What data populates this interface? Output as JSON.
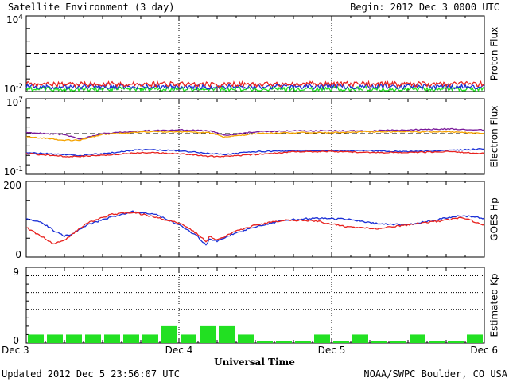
{
  "header": {
    "title": "Satellite Environment (3 day)",
    "begin": "Begin:  2012 Dec 3 0000 UTC"
  },
  "footer": {
    "updated": "Updated 2012 Dec  5 23:56:07 UTC",
    "credit": "NOAA/SWPC Boulder, CO USA"
  },
  "x_axis": {
    "title": "Universal Time",
    "ticks": [
      "Dec 3",
      "Dec 4",
      "Dec 5",
      "Dec 6"
    ]
  },
  "colors": {
    "red": "#e8231f",
    "blue": "#1a2fd6",
    "green": "#22e022",
    "orange": "#f5a300",
    "purple": "#7a1a9a",
    "black": "#000000"
  },
  "chart_data": [
    {
      "type": "line",
      "ylabel": "Proton Flux",
      "scale": "log",
      "ylim_exp": [
        -2,
        4
      ],
      "y_tick_labels": [
        "10^4",
        "10^-2"
      ],
      "threshold_exp": 1,
      "x_days": [
        0,
        0.25,
        0.5,
        0.75,
        1,
        1.25,
        1.5,
        1.75,
        2,
        2.25,
        2.5,
        2.75,
        3
      ],
      "series": [
        {
          "color": "red",
          "values_exp": [
            -1.4,
            -1.45,
            -1.4,
            -1.42,
            -1.4,
            -1.45,
            -1.42,
            -1.4,
            -1.38,
            -1.4,
            -1.42,
            -1.4,
            -1.4
          ]
        },
        {
          "color": "blue",
          "values_exp": [
            -1.6,
            -1.62,
            -1.6,
            -1.6,
            -1.62,
            -1.6,
            -1.6,
            -1.62,
            -1.6,
            -1.6,
            -1.6,
            -1.62,
            -1.6
          ]
        },
        {
          "color": "green",
          "values_exp": [
            -1.8,
            -1.82,
            -1.8,
            -1.8,
            -1.82,
            -1.8,
            -1.8,
            -1.82,
            -1.8,
            -1.8,
            -1.8,
            -1.82,
            -1.8
          ]
        }
      ]
    },
    {
      "type": "line",
      "ylabel": "Electron Flux",
      "scale": "log",
      "ylim_exp": [
        -1,
        7
      ],
      "y_tick_labels": [
        "10^7",
        "10^-1"
      ],
      "threshold_exp": 3.3,
      "x_days": [
        0,
        0.25,
        0.35,
        0.5,
        0.75,
        1,
        1.2,
        1.3,
        1.5,
        1.75,
        2,
        2.25,
        2.5,
        2.75,
        3
      ],
      "series": [
        {
          "color": "purple",
          "values_exp": [
            3.4,
            3.2,
            2.7,
            3.3,
            3.6,
            3.7,
            3.6,
            3.1,
            3.5,
            3.6,
            3.6,
            3.6,
            3.7,
            3.8,
            3.7
          ]
        },
        {
          "color": "orange",
          "values_exp": [
            3.0,
            2.6,
            2.6,
            3.2,
            3.5,
            3.5,
            3.4,
            2.9,
            3.3,
            3.4,
            3.4,
            3.5,
            3.5,
            3.5,
            3.3
          ]
        },
        {
          "color": "blue",
          "values_exp": [
            1.3,
            1.1,
            1.0,
            1.2,
            1.6,
            1.5,
            1.2,
            1.1,
            1.4,
            1.5,
            1.5,
            1.5,
            1.4,
            1.5,
            1.7
          ]
        },
        {
          "color": "red",
          "values_exp": [
            1.2,
            0.9,
            0.9,
            1.0,
            1.3,
            1.2,
            0.9,
            0.9,
            1.1,
            1.4,
            1.4,
            1.3,
            1.3,
            1.4,
            1.2
          ]
        }
      ]
    },
    {
      "type": "line",
      "ylabel": "GOES Hp",
      "ylim": [
        0,
        200
      ],
      "y_tick_labels": [
        "200",
        "0"
      ],
      "x_days": [
        0,
        0.1,
        0.18,
        0.25,
        0.3,
        0.4,
        0.55,
        0.7,
        0.85,
        1.0,
        1.12,
        1.18,
        1.2,
        1.25,
        1.35,
        1.5,
        1.7,
        1.9,
        2.1,
        2.3,
        2.5,
        2.7,
        2.85,
        3.0
      ],
      "series": [
        {
          "color": "blue",
          "values": [
            102,
            92,
            70,
            55,
            62,
            85,
            105,
            120,
            112,
            85,
            55,
            30,
            48,
            42,
            60,
            80,
            98,
            103,
            100,
            88,
            85,
            100,
            110,
            102
          ]
        },
        {
          "color": "red",
          "values": [
            78,
            55,
            35,
            45,
            60,
            90,
            112,
            118,
            105,
            90,
            62,
            40,
            55,
            45,
            65,
            85,
            98,
            95,
            80,
            75,
            85,
            95,
            105,
            85
          ]
        }
      ]
    },
    {
      "type": "bar",
      "ylabel": "Estimated Kp",
      "ylim": [
        0,
        9
      ],
      "y_tick_labels": [
        "9",
        "0"
      ],
      "dotted_levels": [
        4,
        6,
        8
      ],
      "bar_color": "green",
      "values": [
        1,
        1,
        1,
        1,
        1,
        1,
        1,
        2,
        1,
        2,
        2,
        1,
        0,
        0,
        0,
        1,
        0,
        1,
        0,
        0,
        1,
        0,
        0,
        1
      ]
    }
  ]
}
